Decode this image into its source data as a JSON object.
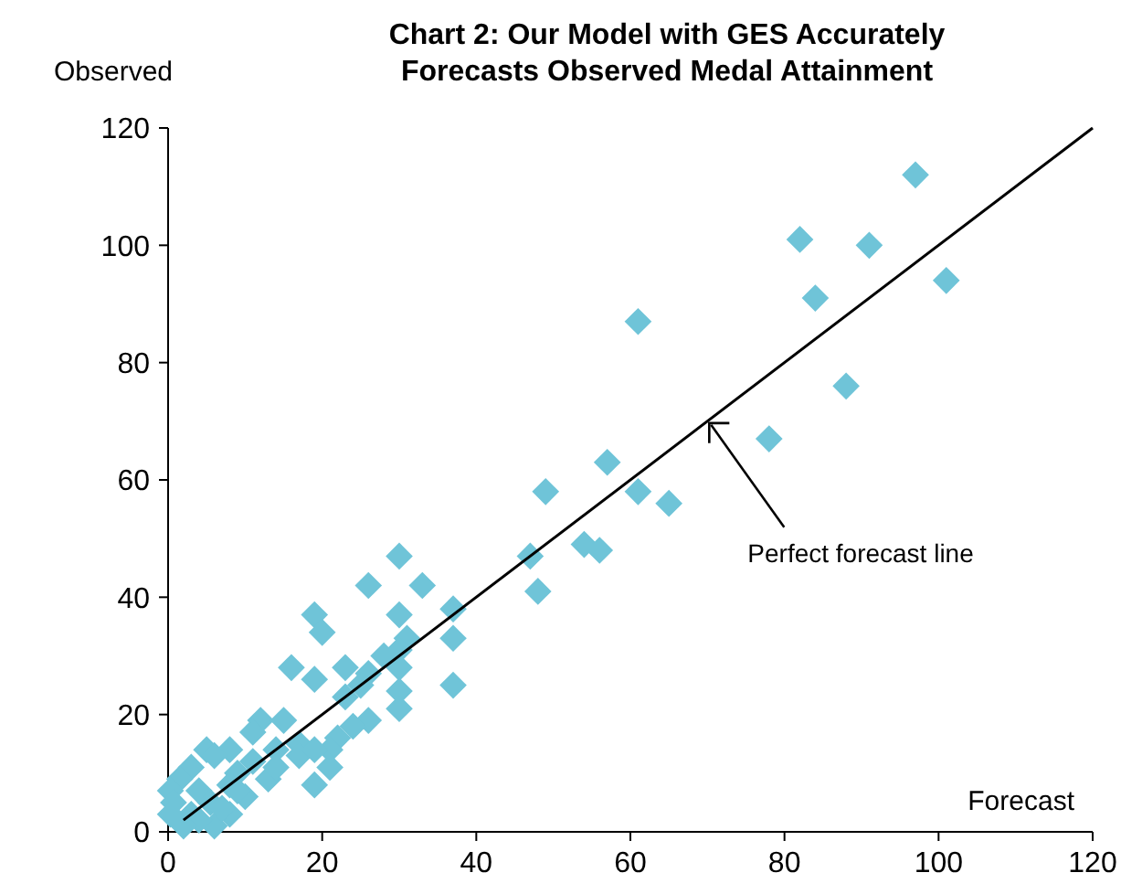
{
  "chart_data": {
    "type": "scatter",
    "title": "Chart 2: Our Model with GES Accurately Forecasts Observed Medal Attainment",
    "xlabel": "Forecast",
    "ylabel": "Observed",
    "xlim": [
      0,
      120
    ],
    "ylim": [
      0,
      120
    ],
    "xticks": [
      0,
      20,
      40,
      60,
      80,
      100,
      120
    ],
    "yticks": [
      0,
      20,
      40,
      60,
      80,
      100,
      120
    ],
    "grid": false,
    "marker": "diamond",
    "annotations": [
      {
        "text": "Perfect forecast line",
        "x": 70,
        "y": 70
      }
    ],
    "series": [
      {
        "color": "#6fc4d8",
        "x": [
          97,
          82,
          91,
          84,
          101,
          61,
          88,
          78,
          57,
          49,
          61,
          65,
          47,
          54,
          56,
          48,
          30,
          26,
          33,
          19,
          30,
          20,
          37,
          37,
          37,
          16,
          23,
          19,
          31,
          30,
          28,
          30,
          26,
          25,
          23,
          30,
          30,
          26,
          24,
          22,
          21,
          21,
          19,
          12,
          15,
          11,
          17,
          14,
          17,
          19,
          5,
          8,
          6,
          11,
          9,
          8,
          3,
          1.5,
          0.3,
          0.7,
          4,
          5.5,
          3,
          0.3,
          6,
          8,
          13,
          14,
          10,
          7,
          4,
          2,
          9
        ],
        "values": [
          112,
          101,
          100,
          91,
          94,
          87,
          76,
          67,
          63,
          58,
          58,
          56,
          47,
          49,
          48,
          41,
          47,
          42,
          42,
          37,
          37,
          34,
          38,
          33,
          25,
          28,
          28,
          26,
          33,
          31,
          30,
          28,
          27,
          25,
          23,
          24,
          21,
          19,
          18,
          16,
          14,
          11,
          8,
          19,
          19,
          17,
          15,
          14,
          13,
          14,
          14,
          14,
          13,
          12,
          10,
          8,
          11,
          9,
          7,
          5,
          7,
          5,
          3,
          3,
          1,
          3,
          9,
          11,
          6,
          4,
          2,
          1,
          7
        ]
      },
      {
        "type": "line",
        "color": "#000000",
        "marker": "none",
        "x": [
          2,
          120
        ],
        "values": [
          2,
          120
        ]
      }
    ]
  }
}
